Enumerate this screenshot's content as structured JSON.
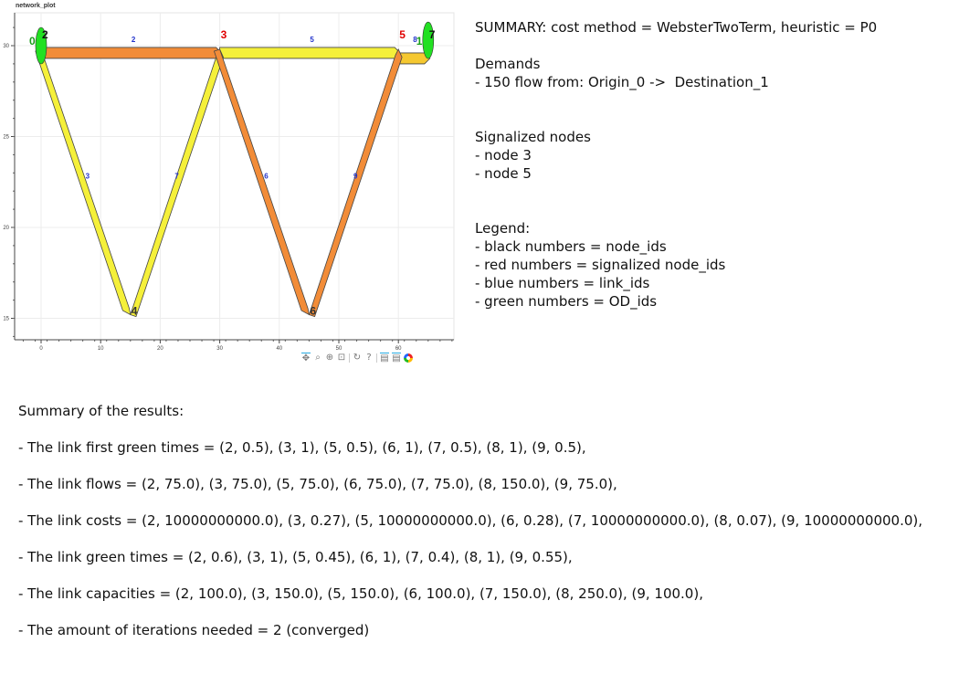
{
  "plot": {
    "title": "network_plot",
    "x_ticks": [
      "0",
      "10",
      "20",
      "30",
      "40",
      "50",
      "60"
    ],
    "y_ticks": [
      "30",
      "25",
      "20",
      "15"
    ],
    "nodes": [
      {
        "id": "0",
        "x": 0,
        "y": 30.15,
        "color": "#1a9e1a"
      },
      {
        "id": "2",
        "x": 0,
        "y": 30.5,
        "color": "#111111"
      },
      {
        "id": "3",
        "x": 30,
        "y": 30.5,
        "color": "#e00000"
      },
      {
        "id": "5",
        "x": 60,
        "y": 30.5,
        "color": "#e00000"
      },
      {
        "id": "4",
        "x": 15,
        "y": 15.3,
        "color": "#333333"
      },
      {
        "id": "6",
        "x": 45,
        "y": 15.3,
        "color": "#333333"
      },
      {
        "id": "7",
        "x": 65,
        "y": 30.5,
        "color": "#111111"
      },
      {
        "id": "1",
        "x": 63,
        "y": 30.15,
        "color": "#1a9e1a"
      }
    ],
    "link_labels": [
      {
        "id": "2",
        "x": 15.5,
        "y": 30.2
      },
      {
        "id": "5",
        "x": 45.5,
        "y": 30.2
      },
      {
        "id": "8",
        "x": 62.8,
        "y": 30.2
      },
      {
        "id": "3",
        "x": 7.8,
        "y": 22.7
      },
      {
        "id": "7",
        "x": 22.8,
        "y": 22.7
      },
      {
        "id": "6",
        "x": 37.8,
        "y": 22.7
      },
      {
        "id": "9",
        "x": 52.8,
        "y": 22.7
      }
    ],
    "links": [
      {
        "id": "2",
        "from": [
          0,
          29.6
        ],
        "to": [
          30,
          29.6
        ],
        "color": "#f28c38"
      },
      {
        "id": "5",
        "from": [
          30,
          29.6
        ],
        "to": [
          60,
          29.6
        ],
        "color": "#f5f03a"
      },
      {
        "id": "8",
        "from": [
          60,
          29.3
        ],
        "to": [
          65,
          29.3
        ],
        "color": "#f5c830"
      },
      {
        "id": "3",
        "from": [
          0,
          29.8
        ],
        "to": [
          15,
          15.2
        ],
        "color": "#f5f03a"
      },
      {
        "id": "7",
        "from": [
          15,
          15.2
        ],
        "to": [
          30,
          29.8
        ],
        "color": "#f5f03a"
      },
      {
        "id": "6",
        "from": [
          30,
          29.8
        ],
        "to": [
          45,
          15.2
        ],
        "color": "#f28c38"
      },
      {
        "id": "9",
        "from": [
          45,
          15.2
        ],
        "to": [
          60,
          29.8
        ],
        "color": "#f28c38"
      }
    ],
    "od_ellipses": [
      {
        "x": 0,
        "y": 30,
        "color": "#22e022"
      },
      {
        "x": 65,
        "y": 30.3,
        "color": "#22e022"
      }
    ],
    "toolbar": [
      {
        "name": "pan-tool-icon",
        "glyph": "✥",
        "active": true
      },
      {
        "name": "box-zoom-tool-icon",
        "glyph": "⌕",
        "active": false
      },
      {
        "name": "wheel-zoom-tool-icon",
        "glyph": "⊕",
        "active": false
      },
      {
        "name": "save-tool-icon",
        "glyph": "⊡",
        "active": false
      },
      {
        "name": "reset-tool-icon",
        "glyph": "↻",
        "active": false
      },
      {
        "name": "help-tool-icon",
        "glyph": "?",
        "active": false
      },
      {
        "name": "hover-tool-icon",
        "glyph": "▤",
        "active": true
      },
      {
        "name": "hover-tool-2-icon",
        "glyph": "▤",
        "active": true
      }
    ]
  },
  "summary": {
    "lines": [
      "SUMMARY: cost method = WebsterTwoTerm, heuristic = P0",
      "",
      "Demands",
      "- 150 flow from: Origin_0 ->  Destination_1",
      "",
      "",
      "Signalized nodes",
      "- node 3",
      "- node 5",
      "",
      "",
      "Legend:",
      "- black numbers = node_ids",
      "- red numbers = signalized node_ids",
      "- blue numbers = link_ids",
      "- green numbers = OD_ids"
    ]
  },
  "results": {
    "lines": [
      "Summary of the results:",
      "- The link first green times = (2, 0.5), (3, 1), (5, 0.5), (6, 1), (7, 0.5), (8, 1), (9, 0.5),",
      "- The link flows = (2, 75.0), (3, 75.0), (5, 75.0), (6, 75.0), (7, 75.0), (8, 150.0), (9, 75.0),",
      "- The link costs = (2, 10000000000.0), (3, 0.27), (5, 10000000000.0), (6, 0.28), (7, 10000000000.0), (8, 0.07), (9, 10000000000.0),",
      "- The link green times = (2, 0.6), (3, 1), (5, 0.45), (6, 1), (7, 0.4), (8, 1), (9, 0.55),",
      "- The link capacities = (2, 100.0), (3, 150.0), (5, 150.0), (6, 100.0), (7, 150.0), (8, 250.0), (9, 100.0),",
      "- The amount of iterations needed = 2 (converged)"
    ]
  },
  "colors": {
    "node_black": "#111111",
    "node_signalized": "#e00000",
    "link_label": "#2233cc",
    "od_label": "#1a9e1a"
  }
}
